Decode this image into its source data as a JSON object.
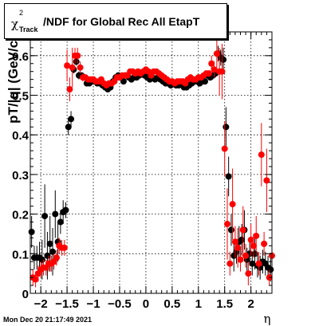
{
  "title": {
    "chi_symbol": "χ",
    "chi_sup": "2",
    "chi_sub": "Track",
    "text": "/NDF for Global Rec All EtapT"
  },
  "timestamp": "Mon Dec 20 21:17:49 2021",
  "colors": {
    "series_black": "#000000",
    "series_red": "#ff0000",
    "grid": "#000000",
    "frame": "#000000"
  },
  "chart_data": {
    "type": "scatter",
    "title": "χ2_Track/NDF for Global Rec All EtapT",
    "xlabel": "η",
    "ylabel": "pT/|q| (GeV/c)",
    "xlim": [
      -2.2,
      2.4
    ],
    "ylim": [
      0,
      0.66
    ],
    "xticks": [
      -2,
      -1.5,
      -1,
      -0.5,
      0,
      0.5,
      1,
      1.5,
      2
    ],
    "xtick_labels": [
      "−2",
      "−1.5",
      "−1",
      "−0.5",
      "0",
      "0.5",
      "1",
      "1.5",
      "2"
    ],
    "yticks": [
      0,
      0.1,
      0.2,
      0.3,
      0.4,
      0.5,
      0.6
    ],
    "ytick_labels": [
      "0",
      "0.1",
      "0.2",
      "0.3",
      "0.4",
      "0.5",
      "0.6"
    ],
    "grid": true,
    "series": [
      {
        "color": "#000000",
        "x": [
          -2.175,
          -2.125,
          -2.075,
          -2.025,
          -1.975,
          -1.925,
          -1.875,
          -1.825,
          -1.775,
          -1.725,
          -1.675,
          -1.625,
          -1.575,
          -1.525,
          -1.475,
          -1.425,
          -1.375,
          -1.325,
          -1.275,
          -1.225,
          -1.175,
          -1.125,
          -1.075,
          -1.025,
          -0.975,
          -0.925,
          -0.875,
          -0.825,
          -0.775,
          -0.725,
          -0.675,
          -0.625,
          -0.575,
          -0.525,
          -0.475,
          -0.425,
          -0.375,
          -0.325,
          -0.275,
          -0.225,
          -0.175,
          -0.125,
          -0.075,
          -0.025,
          0.025,
          0.075,
          0.125,
          0.175,
          0.225,
          0.275,
          0.325,
          0.375,
          0.425,
          0.475,
          0.525,
          0.575,
          0.625,
          0.675,
          0.725,
          0.775,
          0.825,
          0.875,
          0.925,
          0.975,
          1.025,
          1.075,
          1.125,
          1.175,
          1.225,
          1.275,
          1.325,
          1.375,
          1.425,
          1.475,
          1.525,
          1.575,
          1.625,
          1.675,
          1.725,
          1.775,
          1.825,
          1.875,
          1.925,
          1.975,
          2.025,
          2.075,
          2.125,
          2.175,
          2.225,
          2.275,
          2.325,
          2.375
        ],
        "y": [
          0.155,
          0.09,
          0.09,
          0.09,
          0.085,
          0.195,
          0.095,
          0.125,
          0.105,
          0.2,
          0.13,
          0.18,
          0.205,
          0.21,
          0.42,
          0.44,
          0.565,
          0.585,
          0.55,
          0.55,
          0.545,
          0.53,
          0.53,
          0.535,
          0.535,
          0.53,
          0.53,
          0.525,
          0.52,
          0.515,
          0.52,
          0.535,
          0.545,
          0.55,
          0.545,
          0.535,
          0.55,
          0.545,
          0.54,
          0.545,
          0.545,
          0.55,
          0.555,
          0.55,
          0.545,
          0.54,
          0.545,
          0.54,
          0.545,
          0.54,
          0.535,
          0.53,
          0.53,
          0.525,
          0.53,
          0.525,
          0.525,
          0.53,
          0.52,
          0.52,
          0.525,
          0.53,
          0.535,
          0.535,
          0.53,
          0.535,
          0.535,
          0.55,
          0.545,
          0.55,
          0.555,
          0.605,
          0.595,
          0.59,
          0.42,
          0.295,
          0.16,
          0.095,
          0.105,
          0.13,
          0.135,
          0.16,
          0.085,
          0.1,
          0.075,
          0.1,
          0.07,
          0.065,
          0.08,
          0.075,
          0.065,
          0.06
        ],
        "err": [
          0.04,
          0.03,
          0.03,
          0.04,
          0.05,
          0.08,
          0.06,
          0.07,
          0.06,
          0.06,
          0.05,
          0.03,
          0.03,
          0.02,
          0.02,
          0.02,
          0.01,
          0.01,
          0.01,
          0.005,
          0.005,
          0.005,
          0.005,
          0.005,
          0.005,
          0.005,
          0.005,
          0.005,
          0.005,
          0.005,
          0.005,
          0.005,
          0.005,
          0.005,
          0.005,
          0.005,
          0.005,
          0.005,
          0.005,
          0.005,
          0.005,
          0.005,
          0.005,
          0.005,
          0.005,
          0.005,
          0.005,
          0.005,
          0.005,
          0.005,
          0.005,
          0.005,
          0.005,
          0.005,
          0.005,
          0.005,
          0.005,
          0.005,
          0.005,
          0.005,
          0.005,
          0.005,
          0.005,
          0.005,
          0.005,
          0.005,
          0.005,
          0.005,
          0.005,
          0.01,
          0.01,
          0.02,
          0.02,
          0.03,
          0.05,
          0.05,
          0.04,
          0.04,
          0.03,
          0.04,
          0.04,
          0.05,
          0.03,
          0.03,
          0.03,
          0.04,
          0.03,
          0.03,
          0.03,
          0.03,
          0.03,
          0.03
        ]
      },
      {
        "color": "#ff0000",
        "x": [
          -2.15,
          -2.1,
          -2.05,
          -2.0,
          -1.95,
          -1.9,
          -1.85,
          -1.8,
          -1.75,
          -1.7,
          -1.65,
          -1.6,
          -1.55,
          -1.5,
          -1.45,
          -1.4,
          -1.35,
          -1.3,
          -1.25,
          -1.2,
          -1.15,
          -1.1,
          -1.05,
          -1.0,
          -0.95,
          -0.9,
          -0.85,
          -0.8,
          -0.75,
          -0.7,
          -0.65,
          -0.6,
          -0.55,
          -0.5,
          -0.45,
          -0.4,
          -0.35,
          -0.3,
          -0.25,
          -0.2,
          -0.15,
          -0.1,
          -0.05,
          0.0,
          0.05,
          0.1,
          0.15,
          0.2,
          0.25,
          0.3,
          0.35,
          0.4,
          0.45,
          0.5,
          0.55,
          0.6,
          0.65,
          0.7,
          0.75,
          0.8,
          0.85,
          0.9,
          0.95,
          1.0,
          1.05,
          1.1,
          1.15,
          1.2,
          1.25,
          1.3,
          1.35,
          1.4,
          1.45,
          1.5,
          1.55,
          1.6,
          1.65,
          1.7,
          1.75,
          1.8,
          1.85,
          1.9,
          1.95,
          2.0,
          2.05,
          2.1,
          2.15,
          2.2,
          2.25,
          2.3,
          2.35,
          2.4
        ],
        "y": [
          0.04,
          0.035,
          0.05,
          0.06,
          0.065,
          0.065,
          0.075,
          0.075,
          0.08,
          0.09,
          0.12,
          0.115,
          0.115,
          0.575,
          0.515,
          0.57,
          0.6,
          0.6,
          0.57,
          0.545,
          0.545,
          0.54,
          0.54,
          0.54,
          0.535,
          0.535,
          0.54,
          0.53,
          0.525,
          0.53,
          0.53,
          0.535,
          0.545,
          0.545,
          0.55,
          0.55,
          0.55,
          0.56,
          0.56,
          0.555,
          0.56,
          0.555,
          0.56,
          0.565,
          0.56,
          0.55,
          0.56,
          0.56,
          0.555,
          0.55,
          0.545,
          0.54,
          0.535,
          0.535,
          0.53,
          0.535,
          0.535,
          0.535,
          0.53,
          0.54,
          0.545,
          0.54,
          0.54,
          0.545,
          0.545,
          0.55,
          0.555,
          0.555,
          0.58,
          0.565,
          0.605,
          0.56,
          0.56,
          0.365,
          0.175,
          0.075,
          0.225,
          0.13,
          0.115,
          0.085,
          0.16,
          0.095,
          0.05,
          0.135,
          0.12,
          0.145,
          0.075,
          0.35,
          0.125,
          0.285,
          0.04,
          0.095
        ],
        "err": [
          0.02,
          0.02,
          0.02,
          0.02,
          0.02,
          0.02,
          0.02,
          0.02,
          0.02,
          0.02,
          0.02,
          0.02,
          0.02,
          0.04,
          0.03,
          0.05,
          0.02,
          0.02,
          0.015,
          0.01,
          0.005,
          0.005,
          0.005,
          0.005,
          0.005,
          0.005,
          0.005,
          0.005,
          0.005,
          0.005,
          0.005,
          0.005,
          0.005,
          0.005,
          0.005,
          0.005,
          0.005,
          0.005,
          0.005,
          0.005,
          0.005,
          0.005,
          0.005,
          0.005,
          0.005,
          0.005,
          0.005,
          0.005,
          0.005,
          0.005,
          0.005,
          0.005,
          0.005,
          0.005,
          0.005,
          0.005,
          0.005,
          0.005,
          0.005,
          0.005,
          0.005,
          0.005,
          0.005,
          0.005,
          0.005,
          0.005,
          0.005,
          0.005,
          0.02,
          0.02,
          0.05,
          0.06,
          0.07,
          0.07,
          0.09,
          0.03,
          0.09,
          0.04,
          0.05,
          0.03,
          0.06,
          0.03,
          0.03,
          0.04,
          0.03,
          0.05,
          0.03,
          0.08,
          0.03,
          0.08,
          0.02,
          0.04
        ]
      }
    ]
  }
}
